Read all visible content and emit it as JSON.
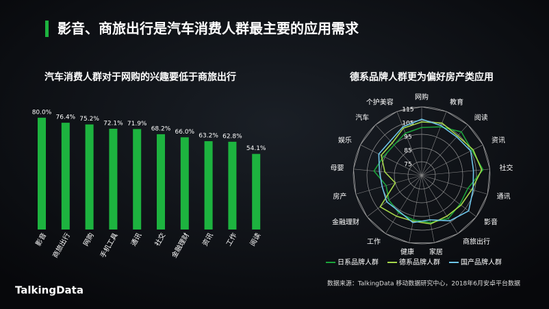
{
  "title": "影音、商旅出行是汽车消费人群最主要的应用需求",
  "source": "数据来源：TalkingData 移动数据研究中心，2018年6月安卓平台数据",
  "logo": "TalkingData",
  "chart_data": [
    {
      "type": "bar",
      "title": "汽车消费人群对于网购的兴趣要低于商旅出行",
      "categories": [
        "影音",
        "商旅出行",
        "网购",
        "手机工具",
        "通讯",
        "社交",
        "金融理财",
        "资讯",
        "工作",
        "阅读"
      ],
      "values": [
        80.0,
        76.4,
        75.2,
        72.1,
        71.9,
        68.2,
        66.0,
        63.2,
        62.8,
        54.1
      ],
      "value_labels": [
        "80.0%",
        "76.4%",
        "75.2%",
        "72.1%",
        "71.9%",
        "68.2%",
        "66.0%",
        "63.2%",
        "62.8%",
        "54.1%"
      ],
      "color": "#1db33f"
    },
    {
      "type": "radar",
      "title": "德系品牌人群更为偏好房产类应用",
      "categories": [
        "网购",
        "教育",
        "阅读",
        "资讯",
        "社交",
        "通讯",
        "影音",
        "商旅出行",
        "家居",
        "健康",
        "工作",
        "金融理财",
        "房产",
        "母婴",
        "娱乐",
        "汽车",
        "个护美容"
      ],
      "rlim": [
        65,
        115
      ],
      "rticks": [
        75,
        85,
        95,
        105,
        115
      ],
      "series": [
        {
          "name": "日系品牌人群",
          "color": "#1aa33a",
          "values": [
            100,
            103,
            108,
            106,
            110,
            100,
            100,
            102,
            100,
            98,
            97,
            95,
            92,
            100,
            96,
            95,
            98
          ]
        },
        {
          "name": "德系品牌人群",
          "color": "#a6d84a",
          "values": [
            104,
            106,
            104,
            107,
            109,
            103,
            101,
            100,
            101,
            99,
            100,
            103,
            85,
            92,
            98,
            97,
            102
          ]
        },
        {
          "name": "国产品牌人群",
          "color": "#6ec6ea",
          "values": [
            106,
            104,
            103,
            105,
            103,
            104,
            108,
            104,
            98,
            100,
            96,
            97,
            95,
            96,
            100,
            99,
            103
          ]
        }
      ],
      "legend": "bottom"
    }
  ]
}
